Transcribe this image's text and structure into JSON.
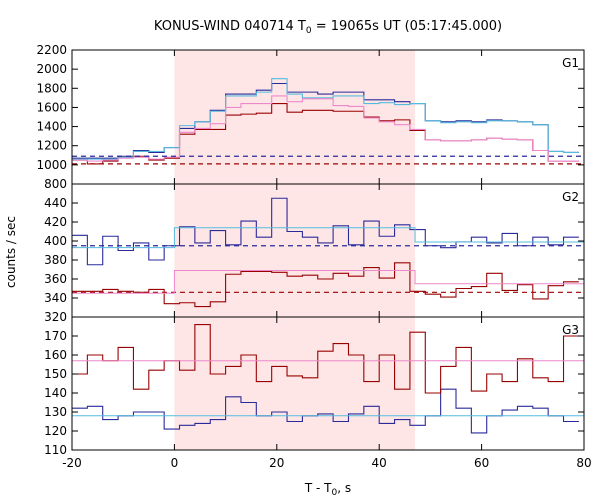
{
  "chart_data": {
    "type": "line",
    "title_main": "KONUS-WIND 040714 T",
    "title_sub": "0",
    "title_rest": " = 19065s UT (05:17:45.000)",
    "xlabel_main": "T - T",
    "xlabel_sub": "0",
    "xlabel_rest": ", s",
    "ylabel": "counts / sec",
    "xlim": [
      -20,
      80
    ],
    "x_ticks": [
      -20,
      0,
      20,
      40,
      60,
      80
    ],
    "x_tick_labels": [
      "-20",
      "0",
      "20",
      "40",
      "60",
      "80"
    ],
    "highlight_x": [
      0,
      47
    ],
    "colors": {
      "highlight": "#ffe6e6",
      "blue": "#2a2a9a",
      "red": "#990000",
      "cyan": "#55bbdd",
      "pink": "#ee88cc"
    },
    "bin_edges": [
      -20,
      -17,
      -14,
      -11,
      -8,
      -5,
      -2,
      1,
      4,
      7,
      10,
      13,
      16,
      19,
      22,
      25,
      28,
      31,
      34,
      37,
      40,
      43,
      46,
      49,
      52,
      55,
      58,
      61,
      64,
      67,
      70,
      73,
      76,
      79
    ],
    "panels": [
      {
        "label": "G1",
        "ylim": [
          800,
          2200
        ],
        "y_ticks": [
          800,
          1000,
          1200,
          1400,
          1600,
          1800,
          2000,
          2200
        ],
        "y_tick_labels": [
          "800",
          "1000",
          "1200",
          "1400",
          "1600",
          "1800",
          "2000",
          "2200"
        ],
        "blue_background": 1090,
        "red_background": 1010,
        "series": [
          {
            "color": "blue",
            "type": "step",
            "values": [
              1070,
              1070,
              1070,
              1090,
              1150,
              1130,
              1180,
              1380,
              1450,
              1570,
              1740,
              1740,
              1780,
              1850,
              1760,
              1760,
              1740,
              1760,
              1760,
              1680,
              1680,
              1660,
              1640,
              1460,
              1450,
              1460,
              1450,
              1470,
              1460,
              1450,
              1420,
              1140,
              1130
            ]
          },
          {
            "color": "red",
            "type": "step",
            "values": [
              1050,
              1010,
              1040,
              1080,
              1090,
              1050,
              1070,
              1320,
              1370,
              1370,
              1520,
              1530,
              1540,
              1640,
              1550,
              1570,
              1570,
              1560,
              1560,
              1500,
              1460,
              1470,
              1360,
              1260,
              1250,
              1250,
              1260,
              1280,
              1270,
              1260,
              1150,
              1040,
              1040
            ]
          },
          {
            "color": "cyan",
            "type": "step",
            "values": [
              1060,
              1060,
              1060,
              1080,
              1140,
              1140,
              1180,
              1410,
              1450,
              1560,
              1720,
              1720,
              1760,
              1900,
              1740,
              1700,
              1700,
              1720,
              1720,
              1640,
              1650,
              1630,
              1640,
              1460,
              1440,
              1450,
              1440,
              1460,
              1460,
              1450,
              1420,
              1140,
              1130
            ]
          },
          {
            "color": "pink",
            "type": "step",
            "values": [
              1050,
              1040,
              1050,
              1070,
              1080,
              1060,
              1080,
              1340,
              1380,
              1430,
              1600,
              1640,
              1640,
              1720,
              1660,
              1690,
              1690,
              1620,
              1610,
              1490,
              1450,
              1420,
              1370,
              1260,
              1250,
              1250,
              1260,
              1280,
              1270,
              1260,
              1150,
              1040,
              1040
            ]
          }
        ]
      },
      {
        "label": "G2",
        "ylim": [
          320,
          460
        ],
        "y_ticks": [
          320,
          340,
          360,
          380,
          400,
          420,
          440
        ],
        "y_tick_labels": [
          "320",
          "340",
          "360",
          "380",
          "400",
          "420",
          "440"
        ],
        "blue_background": 395,
        "red_background": 346,
        "blue_fit": {
          "left": 393,
          "mid": 414,
          "right": 399
        },
        "red_fit": {
          "left": 345,
          "mid": 369,
          "right": 355
        },
        "series": [
          {
            "color": "blue",
            "type": "step",
            "values": [
              406,
              375,
              405,
              390,
              398,
              380,
              395,
              415,
              398,
              411,
              396,
              421,
              404,
              445,
              410,
              404,
              398,
              416,
              396,
              421,
              405,
              417,
              412,
              395,
              393,
              399,
              404,
              398,
              408,
              395,
              404,
              396,
              404
            ]
          },
          {
            "color": "red",
            "type": "step",
            "values": [
              347,
              347,
              349,
              347,
              346,
              349,
              334,
              335,
              331,
              336,
              365,
              368,
              368,
              367,
              363,
              364,
              360,
              366,
              363,
              372,
              361,
              377,
              347,
              344,
              341,
              350,
              352,
              366,
              348,
              354,
              339,
              353,
              357
            ]
          }
        ]
      },
      {
        "label": "G3",
        "ylim": [
          110,
          180
        ],
        "y_ticks": [
          110,
          120,
          130,
          140,
          150,
          160,
          170
        ],
        "y_tick_labels": [
          "110",
          "120",
          "130",
          "140",
          "150",
          "160",
          "170"
        ],
        "blue_fit_y": 128,
        "red_fit_y": 157,
        "series": [
          {
            "color": "blue",
            "type": "step",
            "values": [
              132,
              133,
              126,
              128,
              130,
              130,
              121,
              123,
              124,
              126,
              138,
              135,
              128,
              130,
              125,
              128,
              129,
              125,
              129,
              133,
              124,
              126,
              123,
              128,
              142,
              132,
              119,
              128,
              131,
              133,
              132,
              128,
              125
            ]
          },
          {
            "color": "red",
            "type": "step",
            "values": [
              150,
              160,
              157,
              164,
              142,
              152,
              157,
              152,
              176,
              150,
              154,
              160,
              146,
              154,
              149,
              148,
              162,
              166,
              160,
              146,
              160,
              142,
              172,
              140,
              154,
              164,
              141,
              150,
              146,
              158,
              148,
              146,
              170
            ]
          }
        ]
      }
    ]
  }
}
